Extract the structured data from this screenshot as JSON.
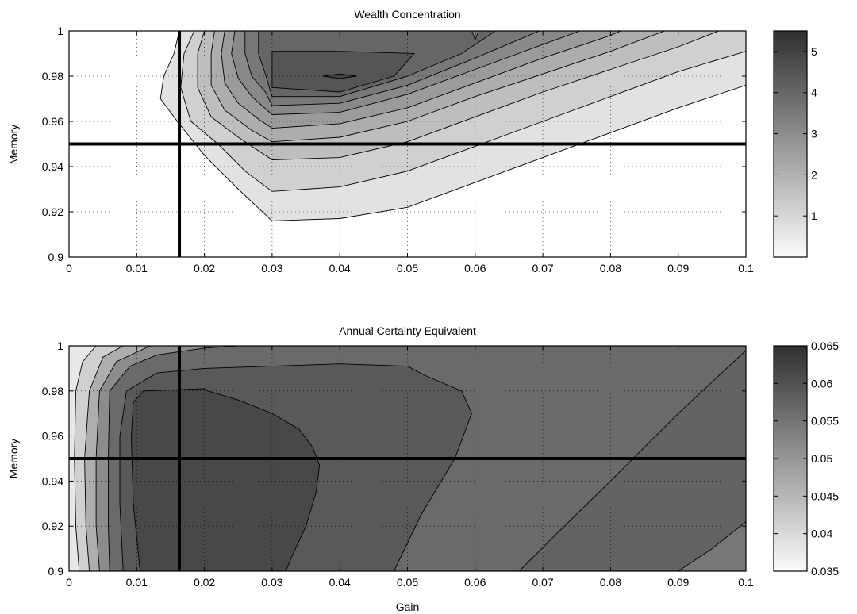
{
  "chart_data": [
    {
      "type": "contour",
      "title": "Wealth Concentration",
      "xlabel": "",
      "ylabel": "Memory",
      "xlim": [
        0,
        0.1
      ],
      "ylim": [
        0.9,
        1
      ],
      "xticks": [
        "0",
        "0.01",
        "0.02",
        "0.03",
        "0.04",
        "0.05",
        "0.06",
        "0.07",
        "0.08",
        "0.09",
        "0.1"
      ],
      "yticks": [
        "0.9",
        "0.92",
        "0.94",
        "0.96",
        "0.98",
        "1"
      ],
      "grid": true,
      "colorbar": {
        "range": [
          0,
          5.5
        ],
        "ticks": [
          "1",
          "2",
          "3",
          "4",
          "5"
        ],
        "tick_values": [
          1,
          2,
          3,
          4,
          5
        ],
        "colormap": "gray-reversed"
      },
      "levels": [
        0.5,
        1.0,
        1.5,
        2.0,
        2.5,
        3.0,
        3.5,
        4.0,
        4.5,
        5.0
      ],
      "contours": [
        {
          "level": 0.5,
          "points": [
            [
              0.0163,
              1
            ],
            [
              0.0155,
              0.99
            ],
            [
              0.014,
              0.98
            ],
            [
              0.0135,
              0.97
            ],
            [
              0.016,
              0.96
            ],
            [
              0.02,
              0.945
            ],
            [
              0.025,
              0.93
            ],
            [
              0.03,
              0.916
            ],
            [
              0.04,
              0.917
            ],
            [
              0.05,
              0.922
            ],
            [
              0.06,
              0.933
            ],
            [
              0.07,
              0.944
            ],
            [
              0.08,
              0.955
            ],
            [
              0.09,
              0.966
            ],
            [
              0.1,
              0.976
            ]
          ]
        },
        {
          "level": 1.0,
          "points": [
            [
              0.0185,
              1
            ],
            [
              0.017,
              0.99
            ],
            [
              0.0165,
              0.975
            ],
            [
              0.018,
              0.96
            ],
            [
              0.022,
              0.95
            ],
            [
              0.026,
              0.938
            ],
            [
              0.03,
              0.929
            ],
            [
              0.04,
              0.931
            ],
            [
              0.05,
              0.938
            ],
            [
              0.06,
              0.949
            ],
            [
              0.07,
              0.96
            ],
            [
              0.08,
              0.971
            ],
            [
              0.09,
              0.982
            ],
            [
              0.1,
              0.991
            ]
          ]
        },
        {
          "level": 1.5,
          "points": [
            [
              0.02,
              1
            ],
            [
              0.019,
              0.99
            ],
            [
              0.019,
              0.975
            ],
            [
              0.021,
              0.962
            ],
            [
              0.025,
              0.953
            ],
            [
              0.03,
              0.943
            ],
            [
              0.04,
              0.944
            ],
            [
              0.05,
              0.951
            ],
            [
              0.06,
              0.962
            ],
            [
              0.07,
              0.973
            ],
            [
              0.08,
              0.983
            ],
            [
              0.09,
              0.993
            ],
            [
              0.096,
              1
            ]
          ]
        },
        {
          "level": 2.0,
          "points": [
            [
              0.0215,
              1
            ],
            [
              0.021,
              0.99
            ],
            [
              0.021,
              0.976
            ],
            [
              0.023,
              0.965
            ],
            [
              0.027,
              0.956
            ],
            [
              0.03,
              0.951
            ],
            [
              0.04,
              0.953
            ],
            [
              0.05,
              0.96
            ],
            [
              0.06,
              0.971
            ],
            [
              0.07,
              0.981
            ],
            [
              0.08,
              0.991
            ],
            [
              0.088,
              1
            ]
          ]
        },
        {
          "level": 2.5,
          "points": [
            [
              0.023,
              1
            ],
            [
              0.0225,
              0.99
            ],
            [
              0.023,
              0.977
            ],
            [
              0.025,
              0.968
            ],
            [
              0.028,
              0.961
            ],
            [
              0.03,
              0.957
            ],
            [
              0.04,
              0.959
            ],
            [
              0.05,
              0.966
            ],
            [
              0.06,
              0.977
            ],
            [
              0.07,
              0.988
            ],
            [
              0.08,
              0.998
            ],
            [
              0.0815,
              1
            ]
          ]
        },
        {
          "level": 3.0,
          "points": [
            [
              0.0245,
              1
            ],
            [
              0.024,
              0.99
            ],
            [
              0.025,
              0.979
            ],
            [
              0.027,
              0.971
            ],
            [
              0.03,
              0.963
            ],
            [
              0.04,
              0.964
            ],
            [
              0.05,
              0.972
            ],
            [
              0.06,
              0.983
            ],
            [
              0.07,
              0.994
            ],
            [
              0.0755,
              1
            ]
          ]
        },
        {
          "level": 3.5,
          "points": [
            [
              0.026,
              1
            ],
            [
              0.026,
              0.99
            ],
            [
              0.027,
              0.98
            ],
            [
              0.029,
              0.973
            ],
            [
              0.03,
              0.967
            ],
            [
              0.04,
              0.968
            ],
            [
              0.05,
              0.976
            ],
            [
              0.06,
              0.988
            ],
            [
              0.0695,
              1
            ]
          ]
        },
        {
          "level": 4.0,
          "points": [
            [
              0.028,
              1
            ],
            [
              0.028,
              0.99
            ],
            [
              0.029,
              0.981
            ],
            [
              0.03,
              0.971
            ],
            [
              0.04,
              0.971
            ],
            [
              0.05,
              0.98
            ],
            [
              0.058,
              0.99
            ],
            [
              0.063,
              1
            ]
          ]
        },
        {
          "level": 4.5,
          "points": [
            [
              0.03,
              0.991
            ],
            [
              0.03,
              0.975
            ],
            [
              0.04,
              0.973
            ],
            [
              0.048,
              0.98
            ],
            [
              0.051,
              0.99
            ],
            [
              0.04,
              0.991
            ],
            [
              0.03,
              0.991
            ]
          ]
        },
        {
          "level": 5.0,
          "points": [
            [
              0.0375,
              0.98
            ],
            [
              0.04,
              0.981
            ],
            [
              0.0425,
              0.98
            ],
            [
              0.04,
              0.979
            ],
            [
              0.0375,
              0.98
            ]
          ]
        }
      ],
      "secondary_contours": [
        {
          "level": 4.5,
          "points": [
            [
              0.0595,
              1
            ],
            [
              0.06,
              0.996
            ],
            [
              0.0605,
              1
            ]
          ]
        }
      ],
      "reference_lines": {
        "x": 0.0163,
        "y": 0.95
      }
    },
    {
      "type": "contour",
      "title": "Annual Certainty Equivalent",
      "xlabel": "Gain",
      "ylabel": "Memory",
      "xlim": [
        0,
        0.1
      ],
      "ylim": [
        0.9,
        1
      ],
      "xticks": [
        "0",
        "0.01",
        "0.02",
        "0.03",
        "0.04",
        "0.05",
        "0.06",
        "0.07",
        "0.08",
        "0.09",
        "0.1"
      ],
      "yticks": [
        "0.9",
        "0.92",
        "0.94",
        "0.96",
        "0.98",
        "1"
      ],
      "grid": true,
      "colorbar": {
        "range": [
          0.035,
          0.065
        ],
        "ticks": [
          "0.035",
          "0.04",
          "0.045",
          "0.05",
          "0.055",
          "0.06",
          "0.065"
        ],
        "tick_values": [
          0.035,
          0.04,
          0.045,
          0.05,
          0.055,
          0.06,
          0.065
        ],
        "colormap": "gray-reversed"
      },
      "levels": [
        0.04,
        0.045,
        0.05,
        0.055,
        0.0575,
        0.06,
        0.062
      ],
      "contours": [
        {
          "level": 0.04,
          "points": [
            [
              0.0015,
              0.9
            ],
            [
              0.001,
              0.92
            ],
            [
              0.0008,
              0.95
            ],
            [
              0.001,
              0.98
            ],
            [
              0.002,
              0.993
            ],
            [
              0.004,
              1
            ]
          ]
        },
        {
          "level": 0.045,
          "points": [
            [
              0.003,
              0.9
            ],
            [
              0.0025,
              0.92
            ],
            [
              0.0023,
              0.95
            ],
            [
              0.003,
              0.98
            ],
            [
              0.005,
              0.995
            ],
            [
              0.008,
              1
            ]
          ]
        },
        {
          "level": 0.05,
          "points": [
            [
              0.0045,
              0.9
            ],
            [
              0.004,
              0.92
            ],
            [
              0.004,
              0.95
            ],
            [
              0.0045,
              0.98
            ],
            [
              0.007,
              0.993
            ],
            [
              0.012,
              1
            ]
          ]
        },
        {
          "level": 0.055,
          "points": [
            [
              0.006,
              0.9
            ],
            [
              0.0058,
              0.92
            ],
            [
              0.0058,
              0.95
            ],
            [
              0.006,
              0.98
            ],
            [
              0.009,
              0.991
            ],
            [
              0.013,
              0.996
            ],
            [
              0.02,
              0.999
            ],
            [
              0.025,
              1
            ]
          ]
        },
        {
          "level": 0.0575,
          "points": [
            [
              0.008,
              0.9
            ],
            [
              0.0075,
              0.93
            ],
            [
              0.0075,
              0.96
            ],
            [
              0.0085,
              0.98
            ],
            [
              0.013,
              0.988
            ],
            [
              0.02,
              0.99
            ],
            [
              0.03,
              0.991
            ],
            [
              0.04,
              0.992
            ],
            [
              0.05,
              0.991
            ],
            [
              0.0525,
              0.987
            ],
            [
              0.058,
              0.98
            ],
            [
              0.0595,
              0.97
            ],
            [
              0.057,
              0.95
            ],
            [
              0.052,
              0.925
            ],
            [
              0.048,
              0.9
            ]
          ]
        },
        {
          "level": 0.06,
          "points": [
            [
              0.0105,
              0.9
            ],
            [
              0.0095,
              0.93
            ],
            [
              0.0092,
              0.96
            ],
            [
              0.0095,
              0.975
            ],
            [
              0.011,
              0.98
            ],
            [
              0.02,
              0.981
            ],
            [
              0.0205,
              0.98
            ],
            [
              0.025,
              0.976
            ],
            [
              0.03,
              0.97
            ],
            [
              0.034,
              0.963
            ],
            [
              0.036,
              0.955
            ],
            [
              0.037,
              0.947
            ],
            [
              0.0365,
              0.935
            ],
            [
              0.035,
              0.92
            ],
            [
              0.033,
              0.907
            ],
            [
              0.032,
              0.9
            ]
          ]
        },
        {
          "level": 0.062,
          "points": [
            [
              0.0665,
              0.9
            ],
            [
              0.0725,
              0.918
            ],
            [
              0.08,
              0.94
            ],
            [
              0.085,
              0.955
            ],
            [
              0.09,
              0.97
            ],
            [
              0.1,
              0.998
            ],
            [
              0.1,
              0.9
            ]
          ]
        }
      ],
      "secondary_contours": [
        {
          "level": 0.0575,
          "points": [
            [
              0.09,
              0.9
            ],
            [
              0.095,
              0.91
            ],
            [
              0.1,
              0.922
            ]
          ]
        }
      ],
      "reference_lines": {
        "x": 0.0163,
        "y": 0.95
      }
    }
  ]
}
